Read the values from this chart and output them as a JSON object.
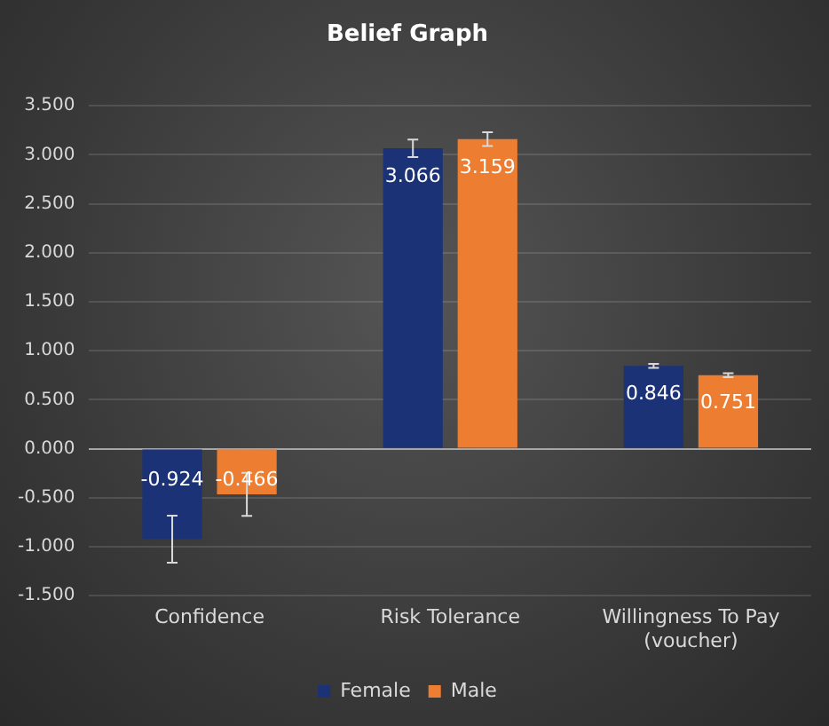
{
  "chart_data": {
    "type": "bar",
    "title": "Belief Graph",
    "categories": [
      "Confidence",
      "Risk Tolerance",
      "Willingness To Pay (voucher)"
    ],
    "series": [
      {
        "name": "Female",
        "color": "#1c3276",
        "values": [
          -0.924,
          3.066,
          0.846
        ],
        "errors": [
          0.24,
          0.09,
          0.02
        ]
      },
      {
        "name": "Male",
        "color": "#ed7d31",
        "values": [
          -0.466,
          3.159,
          0.751
        ],
        "errors": [
          0.22,
          0.07,
          0.02
        ]
      }
    ],
    "ylim": [
      -1.5,
      3.5
    ],
    "yticks": [
      {
        "value": -1.5,
        "label": "-1.500"
      },
      {
        "value": -1,
        "label": "-1.000"
      },
      {
        "value": -0.5,
        "label": "-0.500"
      },
      {
        "value": 0,
        "label": "0.000"
      },
      {
        "value": 0.5,
        "label": "0.500"
      },
      {
        "value": 1,
        "label": "1.000"
      },
      {
        "value": 1.5,
        "label": "1.500"
      },
      {
        "value": 2,
        "label": "2.000"
      },
      {
        "value": 2.5,
        "label": "2.500"
      },
      {
        "value": 3,
        "label": "3.000"
      },
      {
        "value": 3.5,
        "label": "3.500"
      }
    ],
    "grid": "y",
    "legend": "bottom",
    "data_labels": true
  }
}
